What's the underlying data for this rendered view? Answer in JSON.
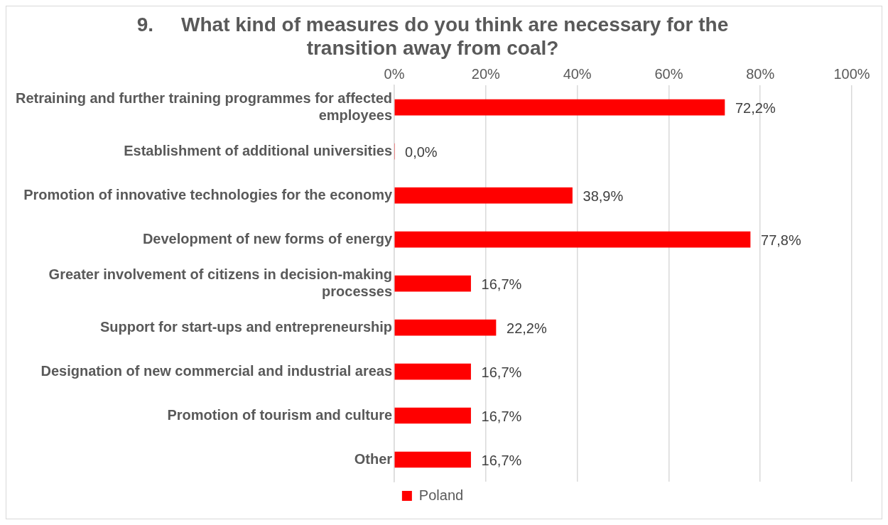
{
  "chart_data": {
    "type": "bar",
    "orientation": "horizontal",
    "title": "9.     What kind of measures do you think are necessary for the transition away from coal?",
    "categories": [
      "Retraining and further training programmes for affected employees",
      "Establishment of additional universities",
      "Promotion of innovative technologies for the economy",
      "Development of new forms of energy",
      "Greater involvement of citizens in decision-making processes",
      "Support for start-ups and entrepreneurship",
      "Designation of new commercial and industrial areas",
      "Promotion of tourism and culture",
      "Other"
    ],
    "series": [
      {
        "name": "Poland",
        "color": "#ff0000",
        "values": [
          72.2,
          0,
          38.9,
          77.8,
          16.7,
          22.2,
          16.7,
          16.7,
          16.7
        ],
        "value_labels": [
          "72,2%",
          "0,0%",
          "38,9%",
          "77,8%",
          "16,7%",
          "22,2%",
          "16,7%",
          "16,7%",
          "16,7%"
        ]
      }
    ],
    "xlim": [
      0,
      100
    ],
    "xticks": [
      {
        "value": 0,
        "label": "0%"
      },
      {
        "value": 20,
        "label": "20%"
      },
      {
        "value": 40,
        "label": "40%"
      },
      {
        "value": 60,
        "label": "60%"
      },
      {
        "value": 80,
        "label": "80%"
      },
      {
        "value": 100,
        "label": "100%"
      }
    ],
    "grid": "x",
    "legend": "bottom"
  }
}
